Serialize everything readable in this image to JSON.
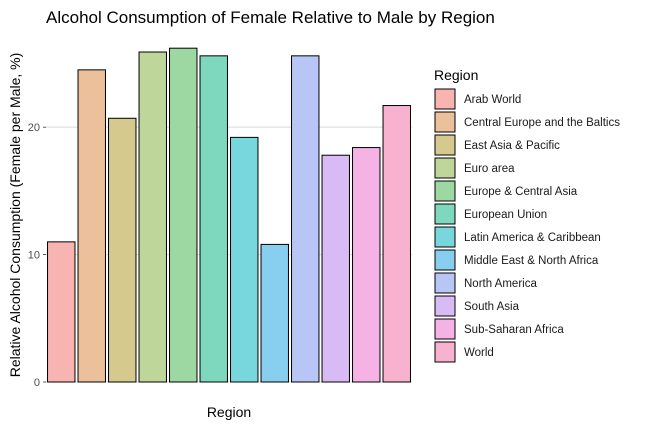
{
  "chart_data": {
    "type": "bar",
    "title": "Alcohol Consumption of Female Relative to Male by Region",
    "xlabel": "Region",
    "ylabel": "Relative Alcohol Consumption (Female per Male, %)",
    "ylim": [
      0,
      27
    ],
    "yticks": [
      0,
      10,
      20
    ],
    "grid": "horizontal major gridlines only",
    "legend_placement": "right",
    "legend_title": "Region",
    "categories": [
      "Arab World",
      "Central Europe and the Baltics",
      "East Asia & Pacific",
      "Euro area",
      "Europe & Central Asia",
      "European Union",
      "Latin America & Caribbean",
      "Middle East & North Africa",
      "North America",
      "South Asia",
      "Sub-Saharan Africa",
      "World"
    ],
    "values": [
      11.0,
      24.5,
      20.7,
      25.9,
      26.2,
      25.6,
      19.2,
      10.8,
      25.6,
      17.8,
      18.4,
      21.7
    ],
    "colors": [
      "#F8B4B0",
      "#EBC09A",
      "#D6C98E",
      "#BFD69A",
      "#9DD8A3",
      "#7ED8BE",
      "#78D7DC",
      "#88CEEE",
      "#B8C6F6",
      "#D8BBF5",
      "#F4B3E4",
      "#F8B2D0"
    ]
  }
}
